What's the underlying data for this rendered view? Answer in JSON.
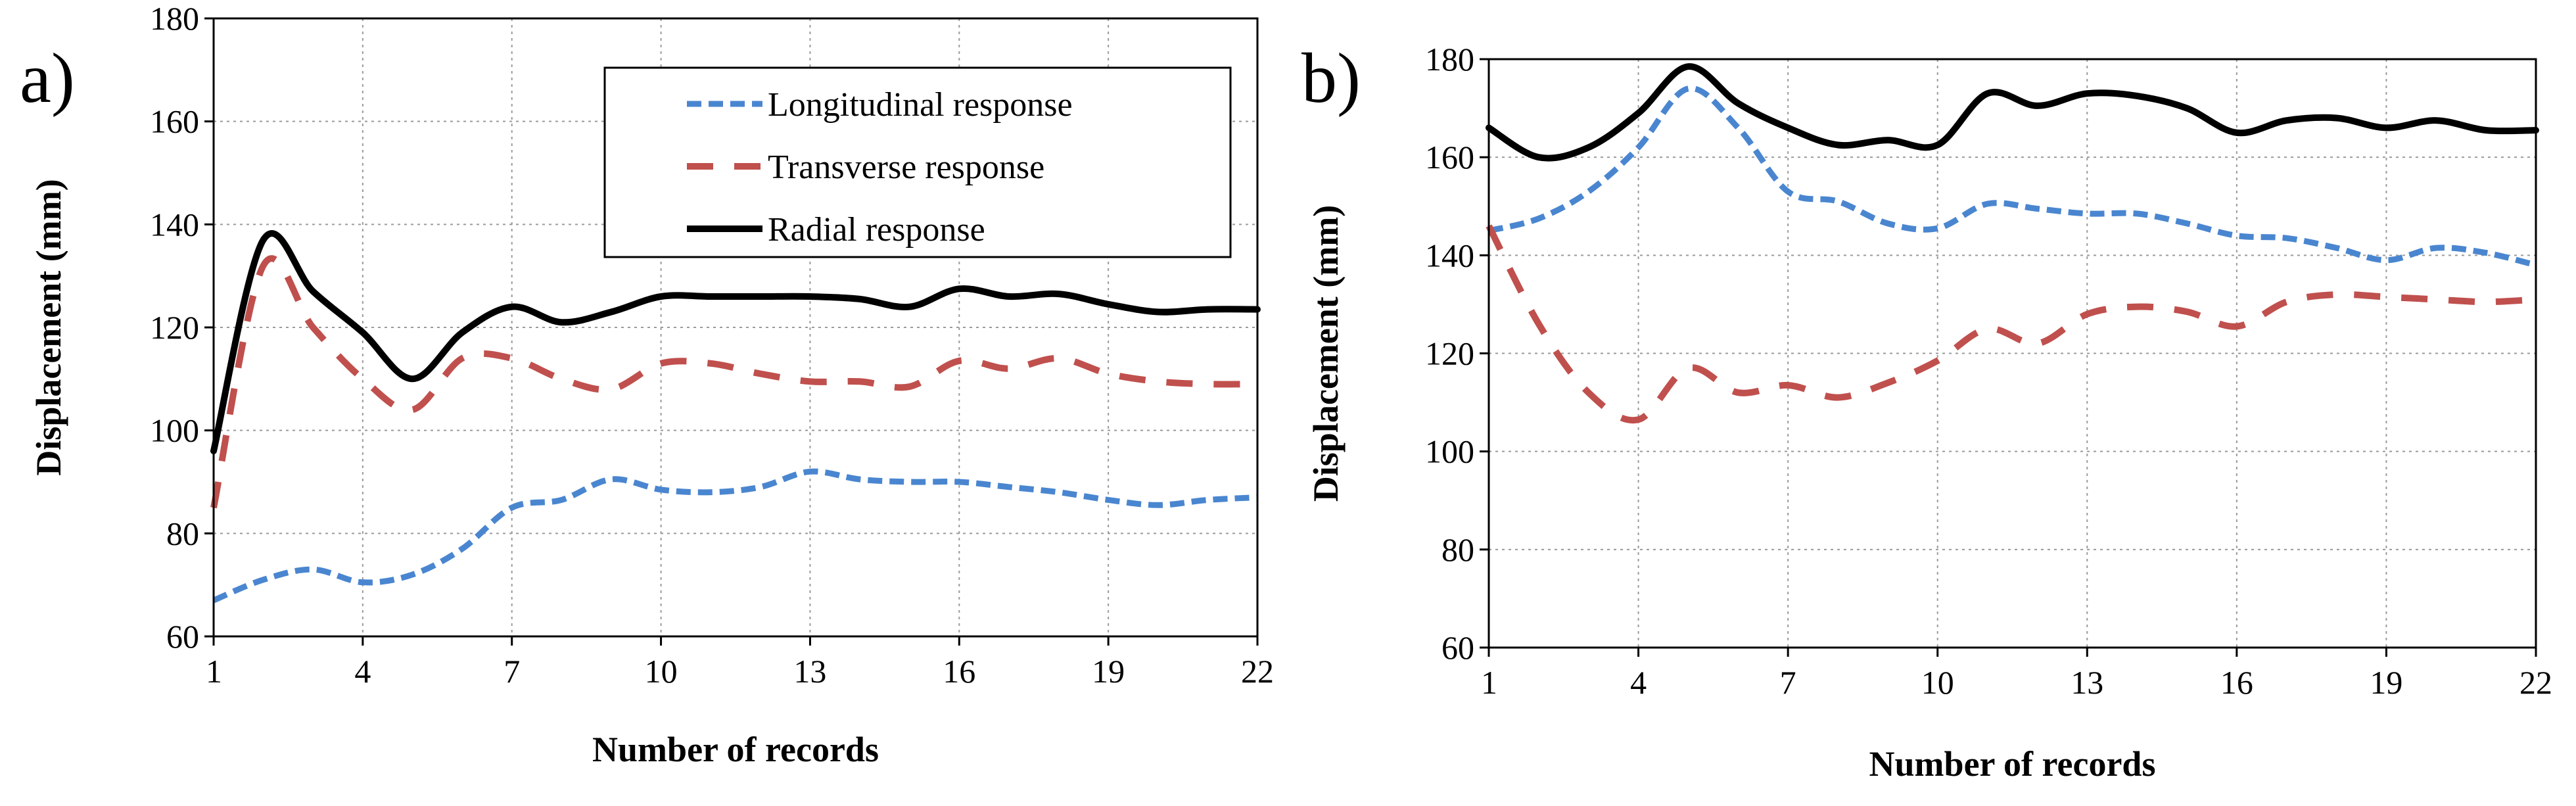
{
  "chart_data": [
    {
      "type": "line",
      "panel_label": "a)",
      "xlabel": "Number of records",
      "ylabel": "Displacement (mm)",
      "xlim": [
        1,
        22
      ],
      "ylim": [
        60,
        180
      ],
      "xticks": [
        1,
        4,
        7,
        10,
        13,
        16,
        19,
        22
      ],
      "yticks": [
        60,
        80,
        100,
        120,
        140,
        160,
        180
      ],
      "grid": true,
      "legend": {
        "position": "top-right",
        "entries": [
          "Longitudinal response",
          "Transverse response",
          "Radial response"
        ]
      },
      "x": [
        1,
        2,
        3,
        4,
        5,
        6,
        7,
        8,
        9,
        10,
        11,
        12,
        13,
        14,
        15,
        16,
        17,
        18,
        19,
        20,
        21,
        22
      ],
      "series": [
        {
          "name": "Longitudinal response",
          "style": "dotted",
          "color": "#4a86d0",
          "values": [
            67,
            71,
            73,
            70.5,
            72,
            77,
            85,
            86.5,
            90.5,
            88.5,
            88,
            89,
            92,
            90.5,
            90,
            90,
            89,
            88,
            86.5,
            85.5,
            86.5,
            87
          ]
        },
        {
          "name": "Transverse response",
          "style": "dashed",
          "color": "#c0504d",
          "values": [
            85,
            132,
            120,
            110,
            104,
            114,
            114,
            110,
            108,
            113,
            113,
            111,
            109.5,
            109.5,
            108.5,
            113.5,
            112,
            114,
            111,
            109.5,
            109,
            109
          ]
        },
        {
          "name": "Radial response",
          "style": "solid",
          "color": "#000000",
          "values": [
            96,
            137,
            127,
            119,
            110,
            119,
            124,
            121,
            123,
            126,
            126,
            126,
            126,
            125.5,
            124,
            127.5,
            126,
            126.5,
            124.5,
            123,
            123.5,
            123.5
          ]
        }
      ]
    },
    {
      "type": "line",
      "panel_label": "b)",
      "xlabel": "Number of records",
      "ylabel": "Displacement (mm)",
      "xlim": [
        1,
        22
      ],
      "ylim": [
        60,
        180
      ],
      "xticks": [
        1,
        4,
        7,
        10,
        13,
        16,
        19,
        22
      ],
      "yticks": [
        60,
        80,
        100,
        120,
        140,
        160,
        180
      ],
      "grid": true,
      "x": [
        1,
        2,
        3,
        4,
        5,
        6,
        7,
        8,
        9,
        10,
        11,
        12,
        13,
        14,
        15,
        16,
        17,
        18,
        19,
        20,
        21,
        22
      ],
      "series": [
        {
          "name": "Longitudinal response",
          "style": "dotted",
          "color": "#4a86d0",
          "values": [
            145,
            147.5,
            153,
            162,
            174,
            166,
            153,
            151,
            146.5,
            145.5,
            150.5,
            149.5,
            148.5,
            148.5,
            146.5,
            144,
            143.5,
            141.5,
            139,
            141.5,
            140.5,
            138
          ]
        },
        {
          "name": "Transverse response",
          "style": "dashed",
          "color": "#c0504d",
          "values": [
            146,
            126,
            112,
            106.5,
            117,
            112,
            113.5,
            111,
            114,
            118.5,
            125,
            122,
            128,
            129.5,
            128.5,
            125.5,
            130.5,
            132,
            131.5,
            131,
            130.5,
            131
          ]
        },
        {
          "name": "Radial response",
          "style": "solid",
          "color": "#000000",
          "values": [
            166,
            160,
            162,
            169,
            178.5,
            171,
            166,
            162.5,
            163.5,
            162.5,
            173,
            170.5,
            173,
            172.5,
            170,
            165,
            167.5,
            168,
            166,
            167.5,
            165.5,
            165.5
          ]
        }
      ]
    }
  ]
}
